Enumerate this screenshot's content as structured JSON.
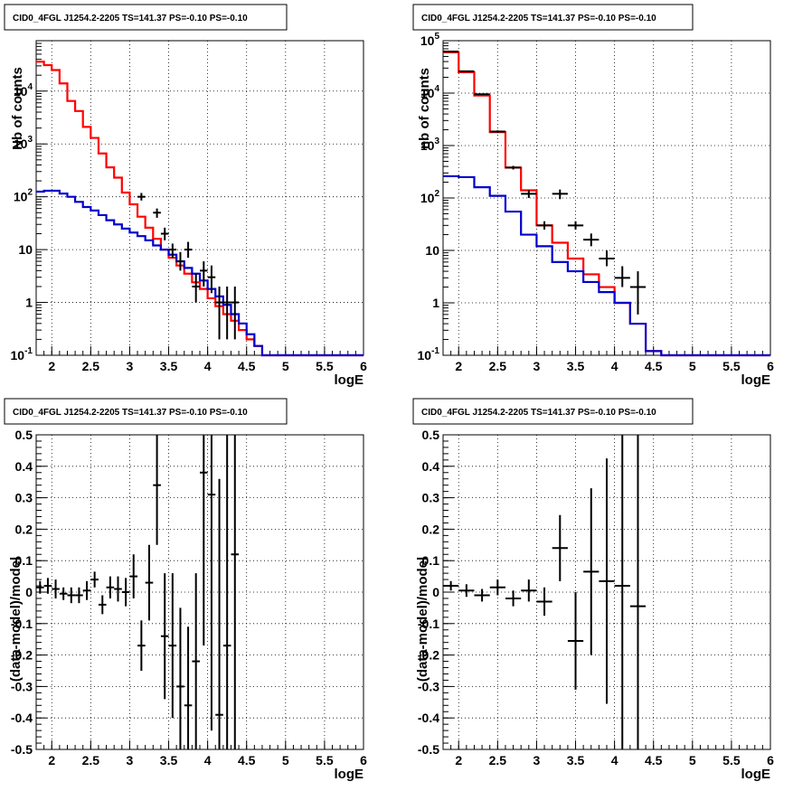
{
  "chart_data": [
    {
      "type": "line",
      "title": "CID0_4FGL J1254.2-2205 TS=141.37 PS=-0.10 PS=-0.10",
      "xlabel": "logE",
      "ylabel": "Nb of counts",
      "xlim": [
        1.8,
        6.0
      ],
      "ylim": [
        0.1,
        90000
      ],
      "yscale": "log",
      "grid": true,
      "x_ticks": [
        "2",
        "2.5",
        "3",
        "3.5",
        "4",
        "4.5",
        "5",
        "5.5",
        "6"
      ],
      "y_ticks": [
        "10^-1",
        "1",
        "10",
        "10^2",
        "10^3",
        "10^4"
      ],
      "bin_edges": [
        1.8,
        1.9,
        2.0,
        2.1,
        2.2,
        2.3,
        2.4,
        2.5,
        2.6,
        2.7,
        2.8,
        2.9,
        3.0,
        3.1,
        3.2,
        3.3,
        3.4,
        3.5,
        3.6,
        3.7,
        3.8,
        3.9,
        4.0,
        4.1,
        4.2,
        4.3,
        4.4,
        4.5,
        4.6,
        4.7,
        4.8,
        4.9,
        5.0,
        5.1,
        5.2,
        5.3,
        5.4,
        5.5,
        5.6,
        5.7,
        5.8,
        5.9,
        6.0
      ],
      "series": [
        {
          "color": "#ff0000",
          "values": [
            36000,
            31000,
            25000,
            14000,
            6500,
            4200,
            2100,
            1300,
            660,
            360,
            230,
            120,
            72,
            42,
            26,
            16,
            10,
            7,
            5,
            3.5,
            2.4,
            1.8,
            1.2,
            0.85,
            0.6,
            0.45,
            0.3,
            0.2,
            0.15,
            0.1,
            0.1,
            0.1,
            0.1,
            0.1,
            0.1,
            0.1,
            0.1,
            0.1,
            0.1,
            0.1,
            0.1,
            0.1
          ]
        },
        {
          "color": "#0000cc",
          "values": [
            125,
            130,
            130,
            115,
            100,
            80,
            64,
            55,
            45,
            36,
            30,
            25,
            21,
            18,
            15,
            12,
            10,
            8,
            6,
            4.5,
            3.5,
            2.6,
            1.8,
            1.3,
            0.9,
            0.6,
            0.4,
            0.25,
            0.15,
            0.1,
            0.1,
            0.1,
            0.1,
            0.1,
            0.1,
            0.1,
            0.1,
            0.1,
            0.1,
            0.1,
            0.1,
            0.1
          ]
        },
        {
          "color": "#000000",
          "style": "points",
          "x": [
            3.15,
            3.35,
            3.45,
            3.55,
            3.65,
            3.75,
            3.85,
            3.95,
            4.05,
            4.15,
            4.25,
            4.35
          ],
          "y": [
            100,
            50,
            20,
            10,
            6,
            10,
            2,
            4,
            3,
            1,
            1,
            1
          ],
          "ylo": [
            85,
            40,
            15,
            7,
            4,
            7,
            1,
            2,
            1.5,
            0.2,
            0.2,
            0.2
          ],
          "yhi": [
            118,
            60,
            26,
            13,
            9,
            14,
            3.5,
            6,
            5,
            2,
            2,
            2
          ]
        }
      ]
    },
    {
      "type": "line",
      "title": "CID0_4FGL J1254.2-2205 TS=141.37 PS=-0.10 PS=-0.10",
      "xlabel": "logE",
      "ylabel": "nb of counts",
      "xlim": [
        1.8,
        6.0
      ],
      "ylim": [
        0.1,
        100000
      ],
      "yscale": "log",
      "grid": true,
      "x_ticks": [
        "2",
        "2.5",
        "3",
        "3.5",
        "4",
        "4.5",
        "5",
        "5.5",
        "6"
      ],
      "y_ticks": [
        "10^-1",
        "1",
        "10",
        "10^2",
        "10^3",
        "10^4",
        "10^5"
      ],
      "bin_edges": [
        1.8,
        2.0,
        2.2,
        2.4,
        2.6,
        2.8,
        3.0,
        3.2,
        3.4,
        3.6,
        3.8,
        4.0,
        4.2,
        4.4,
        4.6,
        4.8,
        5.0,
        5.2,
        5.4,
        5.6,
        5.8,
        6.0
      ],
      "series": [
        {
          "color": "#ff0000",
          "values": [
            60000,
            25000,
            9000,
            1800,
            380,
            140,
            30,
            14,
            7,
            3.5,
            2,
            1,
            0.4,
            0.12,
            0.1,
            0.1,
            0.1,
            0.1,
            0.1,
            0.1,
            0.1
          ]
        },
        {
          "color": "#0000cc",
          "values": [
            260,
            250,
            160,
            110,
            55,
            20,
            12,
            6,
            4,
            2.5,
            1.6,
            1,
            0.4,
            0.12,
            0.1,
            0.1,
            0.1,
            0.1,
            0.1,
            0.1,
            0.1
          ]
        },
        {
          "color": "#000000",
          "style": "points",
          "x": [
            1.9,
            2.1,
            2.3,
            2.5,
            2.7,
            2.9,
            3.1,
            3.3,
            3.5,
            3.7,
            3.9,
            4.1,
            4.3
          ],
          "y": [
            62000,
            26000,
            9500,
            1850,
            380,
            120,
            30,
            120,
            30,
            16,
            7,
            3,
            2
          ],
          "ylo": [
            60000,
            25000,
            9200,
            1750,
            350,
            100,
            25,
            95,
            25,
            12,
            5,
            2,
            0.6
          ],
          "yhi": [
            64000,
            27000,
            9800,
            1950,
            410,
            140,
            36,
            145,
            36,
            21,
            10,
            5,
            4
          ]
        }
      ]
    },
    {
      "type": "scatter",
      "title": "CID0_4FGL J1254.2-2205 TS=141.37 PS=-0.10 PS=-0.10",
      "xlabel": "logE",
      "ylabel": "(data-model)/model",
      "xlim": [
        1.8,
        6.0
      ],
      "ylim": [
        -0.5,
        0.5
      ],
      "grid": true,
      "x_ticks": [
        "2",
        "2.5",
        "3",
        "3.5",
        "4",
        "4.5",
        "5",
        "5.5",
        "6"
      ],
      "y_ticks": [
        "-0.5",
        "-0.4",
        "-0.3",
        "-0.2",
        "-0.1",
        "0",
        "0.1",
        "0.2",
        "0.3",
        "0.4",
        "0.5"
      ],
      "x": [
        1.85,
        1.95,
        2.05,
        2.15,
        2.25,
        2.35,
        2.45,
        2.55,
        2.65,
        2.75,
        2.85,
        2.95,
        3.05,
        3.15,
        3.25,
        3.35,
        3.45,
        3.55,
        3.65,
        3.75,
        3.85,
        3.95,
        4.05,
        4.15,
        4.25,
        4.35
      ],
      "y": [
        0.015,
        0.02,
        0.01,
        -0.005,
        -0.01,
        -0.01,
        0.005,
        0.04,
        -0.04,
        0.015,
        0.01,
        0.0,
        0.05,
        -0.17,
        0.03,
        0.34,
        -0.14,
        -0.17,
        -0.3,
        -0.36,
        -0.22,
        0.38,
        0.31,
        -0.39,
        -0.17,
        0.12
      ],
      "yerr": [
        0.02,
        0.025,
        0.03,
        0.02,
        0.025,
        0.025,
        0.03,
        0.025,
        0.03,
        0.035,
        0.04,
        0.045,
        0.07,
        0.08,
        0.12,
        0.19,
        0.2,
        0.23,
        0.25,
        0.25,
        0.28,
        0.55,
        0.75,
        0.75,
        0.75,
        0.75
      ]
    },
    {
      "type": "scatter",
      "title": "CID0_4FGL J1254.2-2205 TS=141.37 PS=-0.10 PS=-0.10",
      "xlabel": "logE",
      "ylabel": "(data-model)/model",
      "xlim": [
        1.8,
        6.0
      ],
      "ylim": [
        -0.5,
        0.5
      ],
      "grid": true,
      "x_ticks": [
        "2",
        "2.5",
        "3",
        "3.5",
        "4",
        "4.5",
        "5",
        "5.5",
        "6"
      ],
      "y_ticks": [
        "-0.5",
        "-0.4",
        "-0.3",
        "-0.2",
        "-0.1",
        "0",
        "0.1",
        "0.2",
        "0.3",
        "0.4",
        "0.5"
      ],
      "x": [
        1.9,
        2.1,
        2.3,
        2.5,
        2.7,
        2.9,
        3.1,
        3.3,
        3.5,
        3.7,
        3.9,
        4.1,
        4.3
      ],
      "y": [
        0.02,
        0.005,
        -0.01,
        0.015,
        -0.02,
        0.005,
        -0.03,
        0.14,
        -0.155,
        0.065,
        0.035,
        0.02,
        -0.045
      ],
      "yerr": [
        0.015,
        0.02,
        0.02,
        0.025,
        0.025,
        0.035,
        0.045,
        0.105,
        0.155,
        0.265,
        0.39,
        0.75,
        0.75
      ]
    }
  ]
}
